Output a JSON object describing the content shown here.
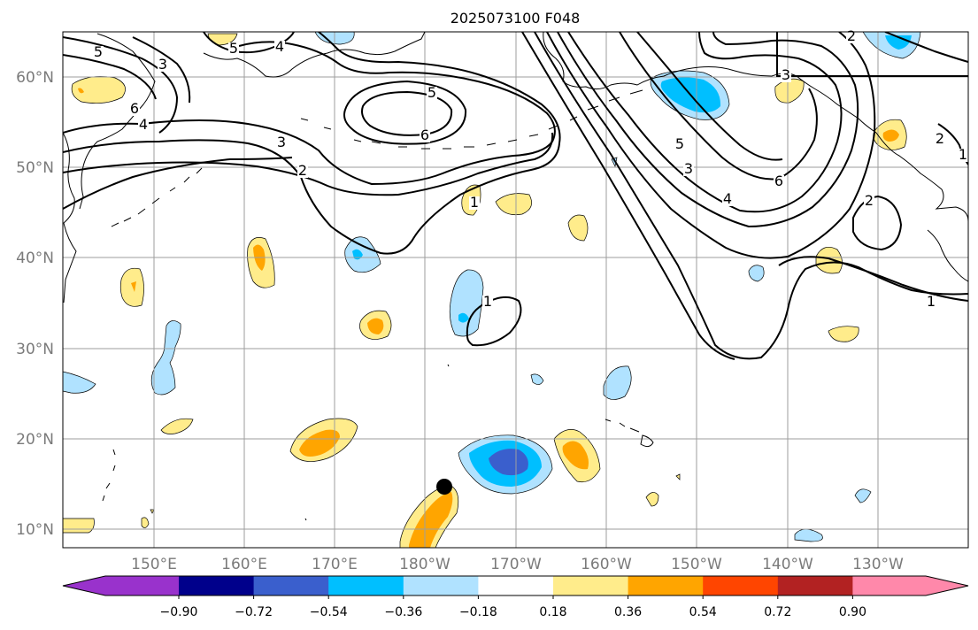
{
  "title": "2025073100 F048",
  "lat_labels": [
    "10°N",
    "20°N",
    "30°N",
    "40°N",
    "50°N",
    "60°N"
  ],
  "lon_labels": [
    "150°E",
    "160°E",
    "170°E",
    "180°W",
    "170°W",
    "160°W",
    "150°W",
    "140°W",
    "130°W"
  ],
  "colorbar": {
    "extend": "both",
    "tick_labels": [
      "−0.90",
      "−0.72",
      "−0.54",
      "−0.36",
      "−0.18",
      "0.18",
      "0.36",
      "0.54",
      "0.72",
      "0.90"
    ],
    "colors": [
      "#9932cc",
      "#00008b",
      "#3a5fcd",
      "#00bfff",
      "#b0e2ff",
      "#ffffff",
      "#ffec8b",
      "#ffa500",
      "#ff4500",
      "#b22222",
      "#ff88aa"
    ]
  },
  "contour_labels": [
    "5",
    "3",
    "4",
    "5",
    "6",
    "4",
    "3",
    "2",
    "1",
    "5",
    "6",
    "2",
    "3",
    "5",
    "3",
    "6",
    "4",
    "2",
    "1",
    "2",
    "1",
    "1"
  ],
  "marker": {
    "label": "storm-position"
  }
}
